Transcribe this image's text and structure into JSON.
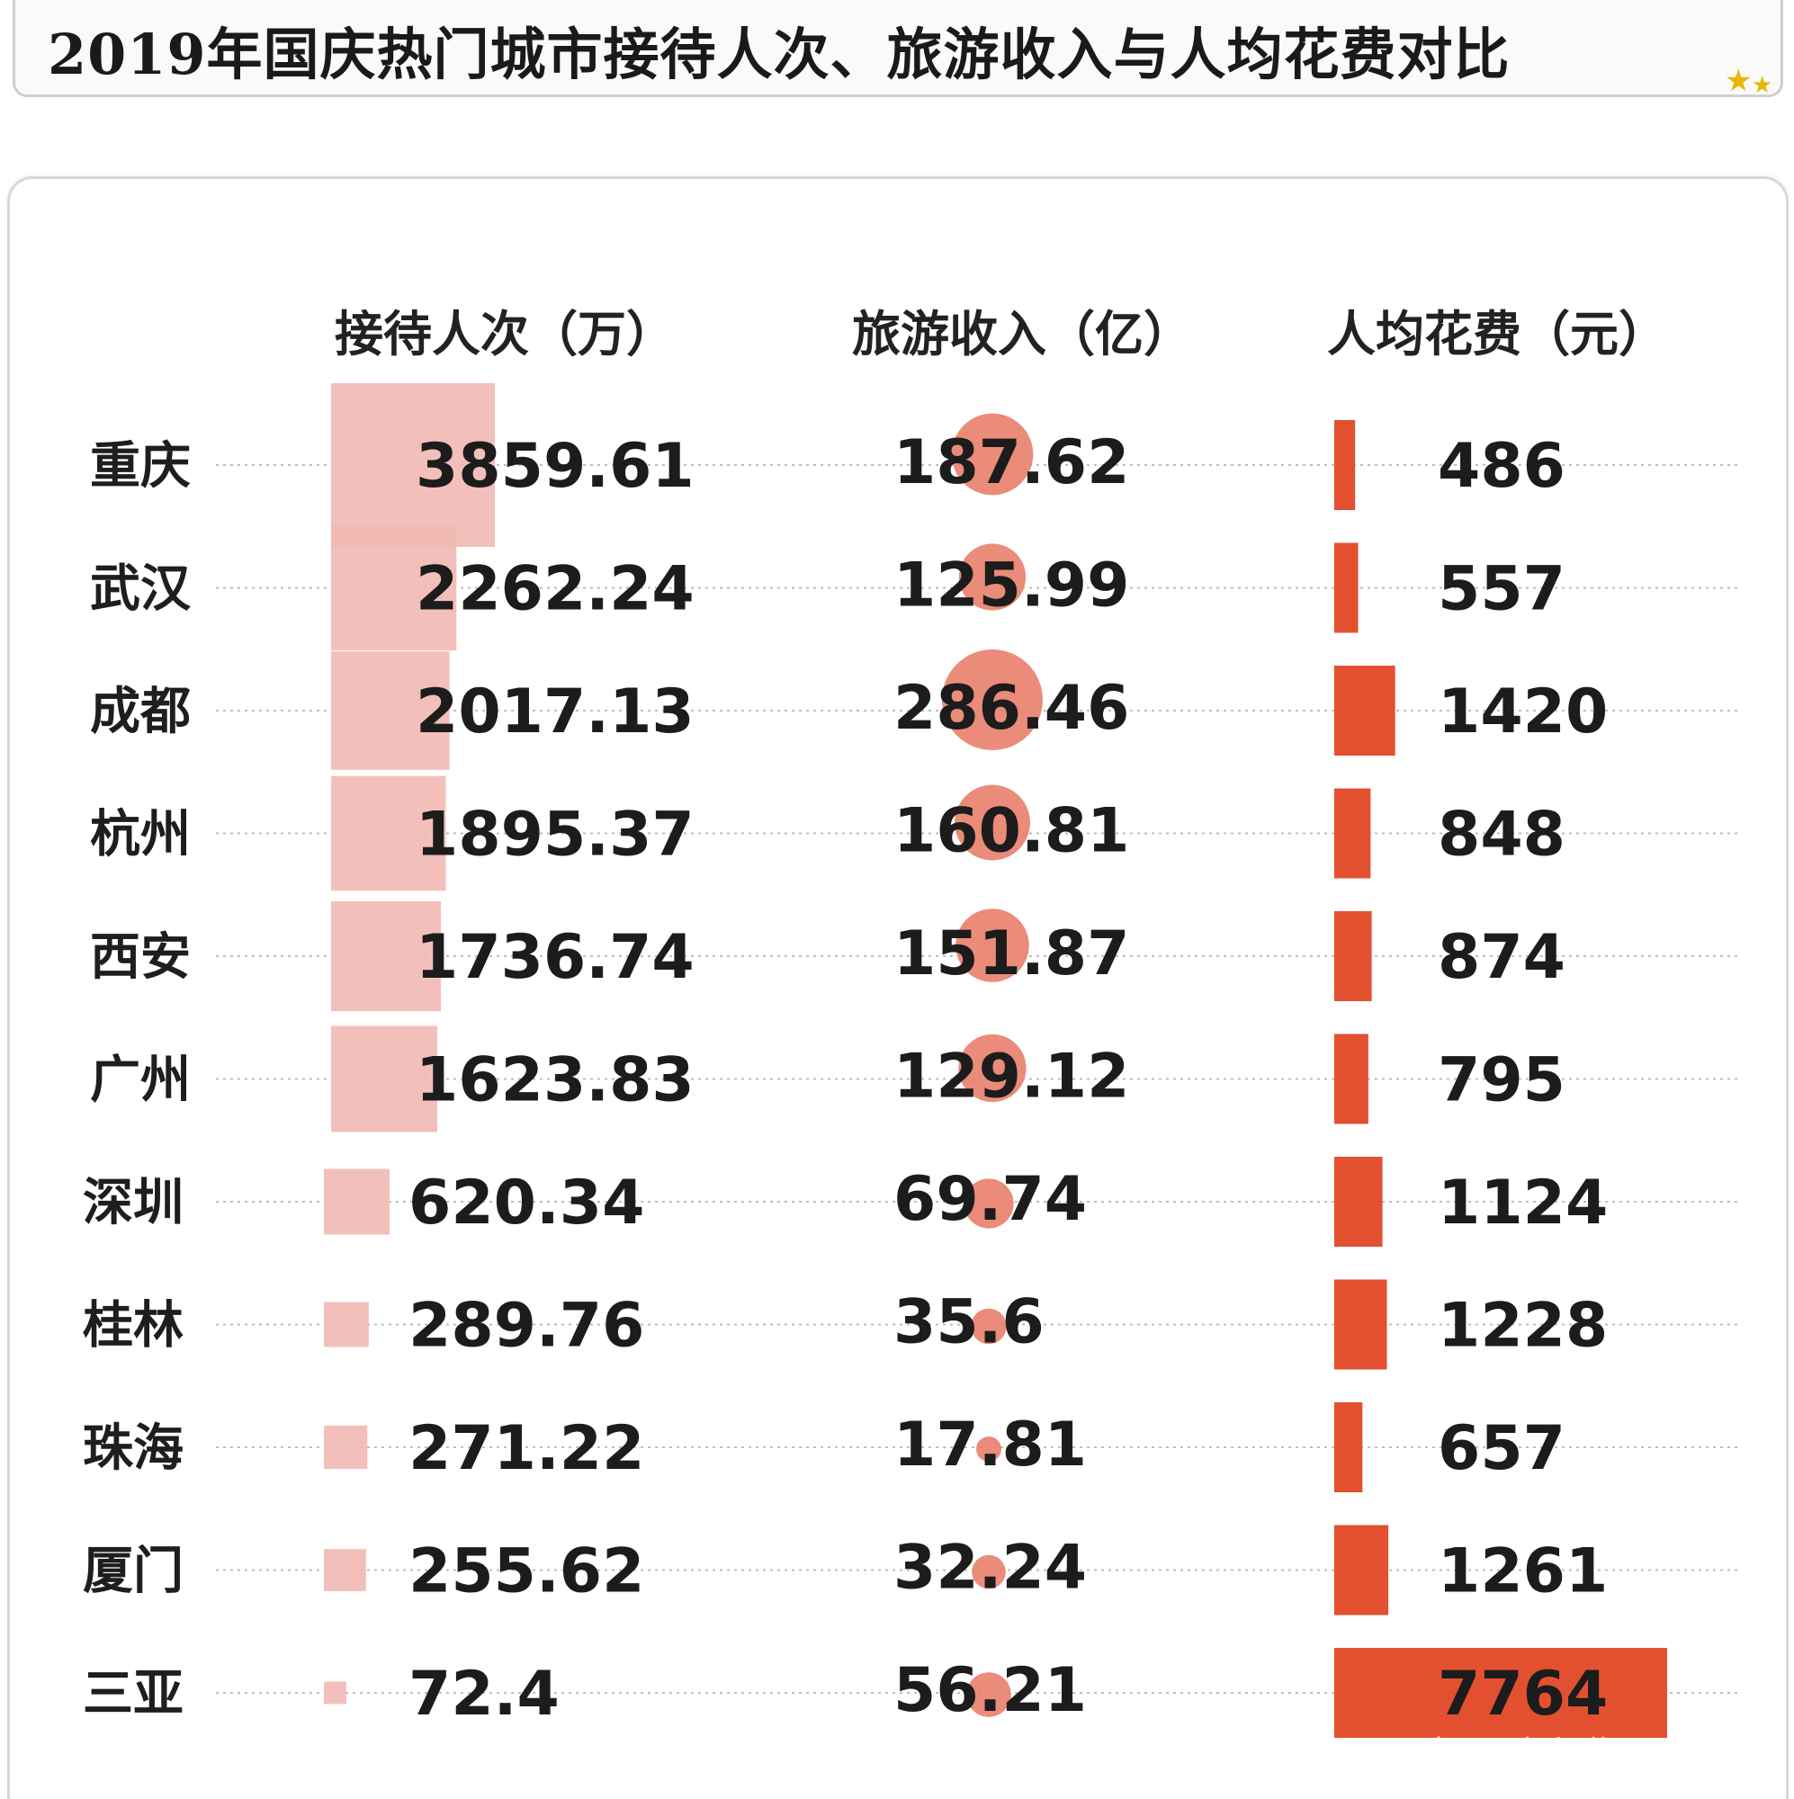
{
  "chart_data": {
    "type": "table",
    "title": "2019年国庆热门城市接待人次、旅游收入与人均花费对比",
    "columns": [
      "接待人次（万）",
      "旅游收入（亿）",
      "人均花费（元）"
    ],
    "categories": [
      "重庆",
      "武汉",
      "成都",
      "杭州",
      "西安",
      "广州",
      "深圳",
      "桂林",
      "珠海",
      "厦门",
      "三亚"
    ],
    "series": [
      {
        "name": "接待人次（万）",
        "mark": "square",
        "color": "#f2b8b2",
        "values": [
          3859.61,
          2262.24,
          2017.13,
          1895.37,
          1736.74,
          1623.83,
          620.34,
          289.76,
          271.22,
          255.62,
          72.4
        ],
        "labels": [
          "3859.61",
          "2262.24",
          "2017.13",
          "1895.37",
          "1736.74",
          "1623.83",
          "620.34",
          "289.76",
          "271.22",
          "255.62",
          "72.4"
        ]
      },
      {
        "name": "旅游收入（亿）",
        "mark": "circle",
        "color": "#e8806a",
        "values": [
          187.62,
          125.99,
          286.46,
          160.81,
          151.87,
          129.12,
          69.74,
          35.6,
          17.81,
          32.24,
          56.21
        ],
        "labels": [
          "187.62",
          "125.99",
          "286.46",
          "160.81",
          "151.87",
          "129.12",
          "69.74",
          "35.6",
          "17.81",
          "32.24",
          "56.21"
        ]
      },
      {
        "name": "人均花费（元）",
        "mark": "bar",
        "color": "#e3502f",
        "values": [
          486,
          557,
          1420,
          848,
          874,
          795,
          1124,
          1228,
          657,
          1261,
          7764
        ],
        "labels": [
          "486",
          "557",
          "1420",
          "848",
          "874",
          "795",
          "1124",
          "1228",
          "657",
          "1261",
          "7764"
        ]
      }
    ],
    "grid": true
  },
  "watermark": "百家号/咯上哔"
}
